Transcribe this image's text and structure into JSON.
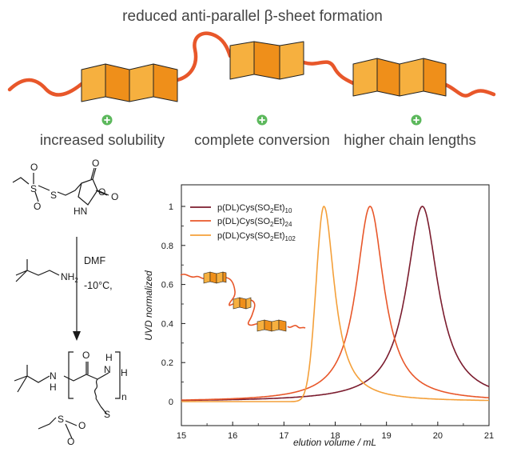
{
  "header": {
    "title": "reduced anti-parallel β-sheet formation"
  },
  "features": [
    {
      "label": "increased solubility",
      "icon": "plus-circle-icon"
    },
    {
      "label": "complete conversion",
      "icon": "plus-circle-icon"
    },
    {
      "label": "higher chain lengths",
      "icon": "plus-circle-icon"
    }
  ],
  "reaction": {
    "monomer": {
      "s1": "S",
      "o1": "O",
      "o2": "O",
      "s2": "S",
      "hn": "HN",
      "o3": "O",
      "o4": "O",
      "o5": "O"
    },
    "initiator": {
      "nh2": "NH",
      "nh2_sub": "2"
    },
    "conditions": {
      "solvent": "DMF",
      "temperature": "-10°C,"
    },
    "product": {
      "n1": "N",
      "h1": "H",
      "o": "O",
      "n2": "N",
      "h2": "H",
      "h3": "H",
      "repeat": "n",
      "s1": "S",
      "s2": "S",
      "o1": "O",
      "o2": "O"
    }
  },
  "colors": {
    "strand": "#e8572a",
    "sheet_light": "#f6b03f",
    "sheet_dark": "#ef8f1a",
    "icon_green": "#5cb85c",
    "series_10": "#7b1c2e",
    "series_24": "#e8572a",
    "series_102": "#f4a03a"
  },
  "chart_data": {
    "type": "line",
    "xlabel": "elution volume  / mL",
    "ylabel": "UVD normalized",
    "xlim": [
      15,
      21
    ],
    "ylim": [
      0,
      1.08
    ],
    "xticks": [
      "15",
      "16",
      "17",
      "18",
      "19",
      "20",
      "21"
    ],
    "yticks": [
      "0",
      "0.2",
      "0.4",
      "0.6",
      "0.8",
      "1"
    ],
    "grid": false,
    "legend_position": "top-left",
    "series": [
      {
        "name_main": "p(DL)Cys(SO",
        "name_sub1": "2",
        "name_mid": "Et)",
        "name_sub2": "10",
        "color": "#7b1c2e",
        "peak_x": 19.7,
        "peak_y": 1.0,
        "fwhm": 0.75,
        "shape": "lorentzian"
      },
      {
        "name_main": "p(DL)Cys(SO",
        "name_sub1": "2",
        "name_mid": "Et)",
        "name_sub2": "24",
        "color": "#e8572a",
        "peak_x": 18.68,
        "peak_y": 1.0,
        "fwhm": 0.66,
        "shape": "lorentzian"
      },
      {
        "name_main": "p(DL)Cys(SO",
        "name_sub1": "2",
        "name_mid": "Et)",
        "name_sub2": "102",
        "color": "#f4a03a",
        "peak_x": 17.78,
        "peak_y": 1.0,
        "fwhm_left": 0.36,
        "fwhm_right": 0.5,
        "shape": "asymmetric"
      }
    ]
  }
}
